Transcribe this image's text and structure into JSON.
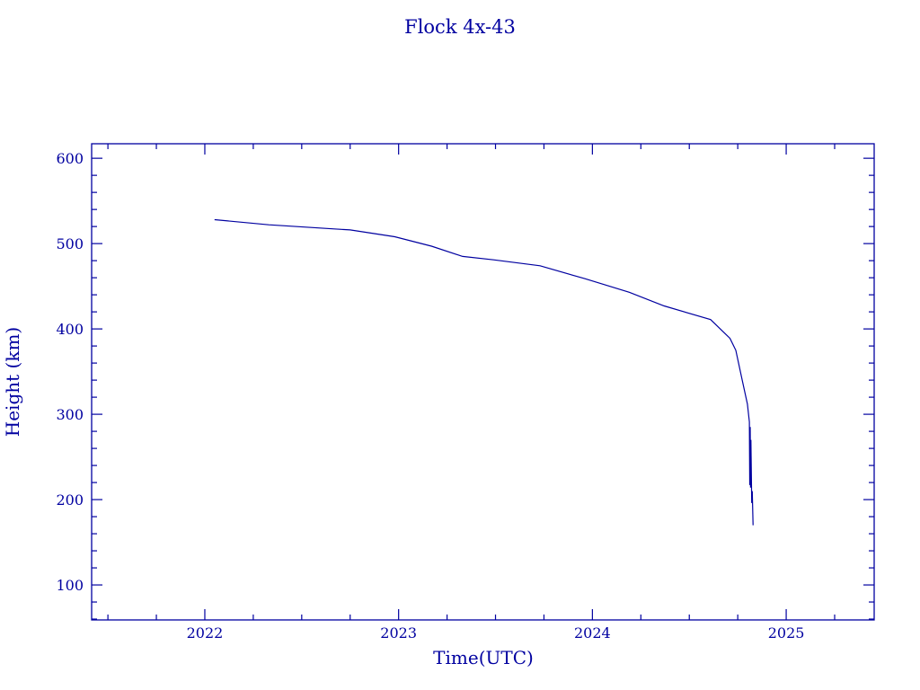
{
  "chart_data": {
    "type": "line",
    "title": "Flock 4x-43",
    "xlabel": "Time(UTC)",
    "ylabel": "Height (km)",
    "xlim": [
      2021.416,
      2025.454
    ],
    "ylim": [
      59,
      617
    ],
    "x_ticks": [
      2022,
      2023,
      2024,
      2025
    ],
    "x_tick_labels": [
      "2022",
      "2023",
      "2024",
      "2025"
    ],
    "x_minor_step": 0.25,
    "y_ticks": [
      100,
      200,
      300,
      400,
      500,
      600
    ],
    "y_tick_labels": [
      "100",
      "200",
      "300",
      "400",
      "500",
      "600"
    ],
    "y_minor_step": 20,
    "grid": false,
    "color": "#0000a0",
    "series": [
      {
        "x": [
          2022.05,
          2022.33,
          2022.75,
          2022.98,
          2023.17,
          2023.33,
          2023.49,
          2023.73,
          2023.96,
          2024.19,
          2024.37,
          2024.61,
          2024.71,
          2024.74,
          2024.77,
          2024.8,
          2024.81,
          2024.812,
          2024.814,
          2024.816,
          2024.818,
          2024.822,
          2024.825,
          2024.829
        ],
        "y": [
          528,
          522,
          516,
          508,
          497,
          485,
          481,
          474,
          459,
          443,
          427,
          411,
          389,
          375,
          343,
          312,
          291,
          217,
          285,
          214,
          270,
          196,
          210,
          170
        ]
      }
    ]
  }
}
